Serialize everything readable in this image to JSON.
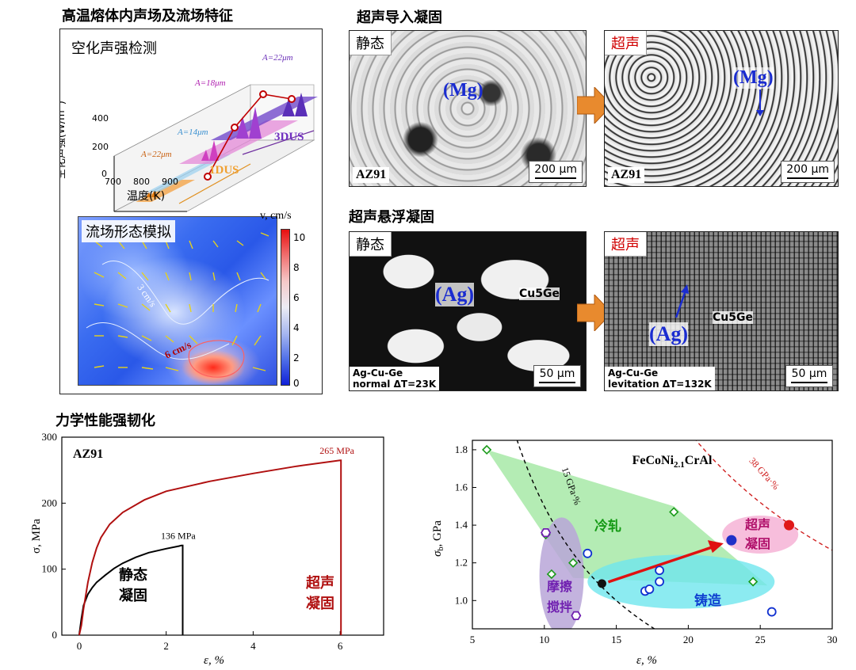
{
  "sections": {
    "acoustic": "高温熔体内声场及流场特征",
    "ultrasonic_solidification": "超声导入凝固",
    "levitation_solidification": "超声悬浮凝固",
    "mechanical": "力学性能强韧化"
  },
  "cavitation": {
    "title": "空化声强检测",
    "ylabel": "空化声强(W/m",
    "ylabel_sup": "2",
    "ylabel_end": ")",
    "xlabel": "温度(K)",
    "y_ticks": [
      "0",
      "200",
      "400"
    ],
    "x_ticks": [
      "700",
      "800",
      "900"
    ],
    "amp_labels": [
      "A=22μm",
      "A=14μm",
      "A=18μm",
      "A=22μm"
    ],
    "mode_1dus": "1DUS",
    "mode_3dus": "3DUS"
  },
  "flowfield": {
    "title": "流场形态模拟",
    "colorbar_label": "v, cm/s",
    "colorbar_ticks": [
      "10",
      "8",
      "6",
      "4",
      "2",
      "0"
    ],
    "contour_3": "3 cm/s",
    "contour_6": "6 cm/s"
  },
  "micro_az91": {
    "static_label": "静态",
    "us_label": "超声",
    "phase": "(Mg)",
    "alloy": "AZ91",
    "scale": "200 μm"
  },
  "micro_agcuge": {
    "static_label": "静态",
    "us_label": "超声",
    "phase": "(Ag)",
    "secondary": "Cu5Ge",
    "caption_static_1": "Ag-Cu-Ge",
    "caption_static_2": "normal ΔT=23K",
    "caption_us_1": "Ag-Cu-Ge",
    "caption_us_2": "levitation ΔT=132K",
    "scale": "50 μm"
  },
  "colors": {
    "static_curve": "#000000",
    "us_curve": "#b01010",
    "cold_rolled_fill": "#9be59b",
    "casting_fill": "#6fe6ee",
    "friction_fill": "#b9a6d8",
    "us_fill": "#f6b3d6",
    "arrow_orange": "#e88a2e"
  },
  "chart_data": [
    {
      "type": "line",
      "title": "AZ91",
      "xlabel": "ε, %",
      "ylabel": "σ, MPa",
      "xlim": [
        -0.4,
        7
      ],
      "ylim": [
        0,
        300
      ],
      "x_ticks": [
        0,
        2,
        4,
        6
      ],
      "y_ticks": [
        0,
        100,
        200,
        300
      ],
      "series": [
        {
          "name": "静态凝固",
          "x": [
            0,
            0.05,
            0.1,
            0.2,
            0.3,
            0.4,
            0.6,
            0.8,
            1.0,
            1.3,
            1.6,
            2.0,
            2.3,
            2.35,
            2.38,
            2.38
          ],
          "y": [
            0,
            25,
            45,
            62,
            72,
            80,
            91,
            101,
            109,
            118,
            125,
            131,
            135,
            136,
            136,
            0
          ]
        },
        {
          "name": "超声凝固",
          "x": [
            0,
            0.05,
            0.1,
            0.2,
            0.3,
            0.4,
            0.5,
            0.7,
            1.0,
            1.5,
            2.0,
            3.0,
            4.0,
            5.0,
            6.0,
            6.02,
            6.02
          ],
          "y": [
            0,
            15,
            40,
            80,
            110,
            132,
            148,
            168,
            186,
            205,
            218,
            233,
            245,
            256,
            265,
            265,
            0
          ]
        }
      ],
      "annotations": [
        {
          "text": "136 MPa",
          "x": 2.35,
          "y": 136
        },
        {
          "text": "265 MPa",
          "x": 6.0,
          "y": 265
        }
      ]
    },
    {
      "type": "scatter",
      "title": "FeCoNi2.1CrAl",
      "xlabel": "ε, %",
      "ylabel": "σb, GPa",
      "xlim": [
        5,
        30
      ],
      "ylim": [
        0.85,
        1.85
      ],
      "x_ticks": [
        5,
        10,
        15,
        20,
        25,
        30
      ],
      "y_ticks": [
        1.0,
        1.2,
        1.4,
        1.6,
        1.8
      ],
      "iso_lines": [
        "15 GPa·%",
        "38 GPa·%"
      ],
      "regions": [
        "冷轧",
        "铸造",
        "摩擦搅拌",
        "超声凝固"
      ],
      "series": [
        {
          "name": "冷轧",
          "x": [
            6,
            10.1,
            10.5,
            12,
            19,
            24.5
          ],
          "y": [
            1.8,
            1.35,
            1.14,
            1.2,
            1.47,
            1.1
          ]
        },
        {
          "name": "铸造",
          "x": [
            13,
            17,
            17.3,
            18,
            18,
            25.8
          ],
          "y": [
            1.25,
            1.05,
            1.06,
            1.16,
            1.1,
            0.94
          ]
        },
        {
          "name": "摩擦搅拌",
          "x": [
            10.1,
            12.2
          ],
          "y": [
            1.36,
            0.92
          ]
        },
        {
          "name": "超声凝固",
          "x": [
            23,
            27
          ],
          "y": [
            1.32,
            1.4
          ]
        },
        {
          "name": "start",
          "x": [
            14
          ],
          "y": [
            1.09
          ]
        }
      ]
    }
  ]
}
